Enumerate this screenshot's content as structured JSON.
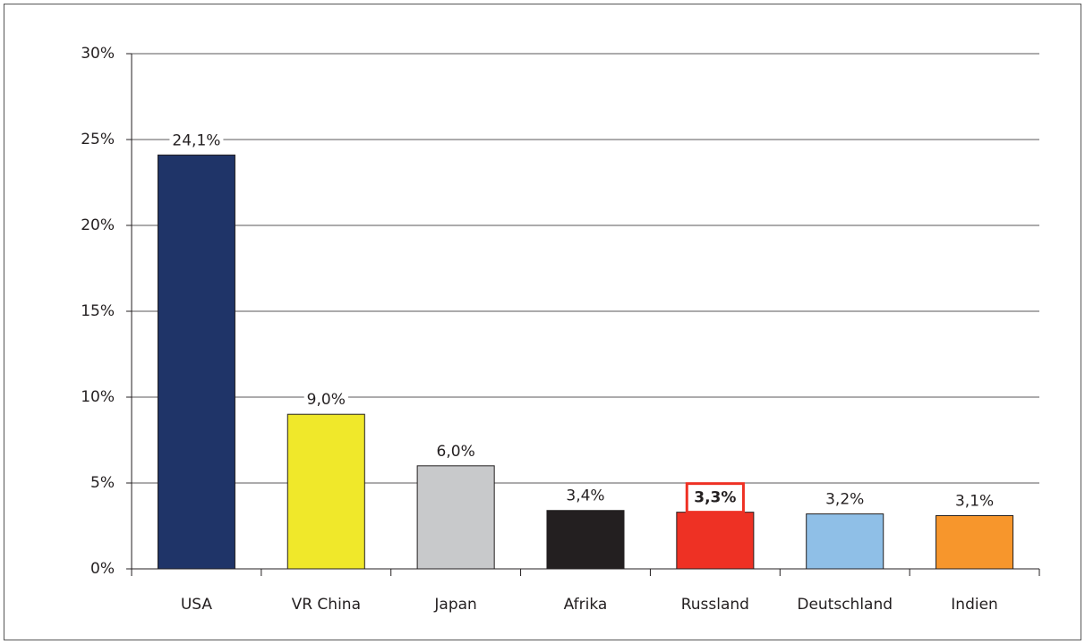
{
  "chart_data": {
    "type": "bar",
    "categories": [
      "USA",
      "VR China",
      "Japan",
      "Afrika",
      "Russland",
      "Deutschland",
      "Indien"
    ],
    "values": [
      24.1,
      9.0,
      6.0,
      3.4,
      3.3,
      3.2,
      3.1
    ],
    "value_labels": [
      "24,1%",
      "9,0%",
      "6,0%",
      "3,4%",
      "3,3%",
      "3,2%",
      "3,1%"
    ],
    "colors": [
      "#1f3468",
      "#f0e82a",
      "#c8c9cb",
      "#231f20",
      "#ee3124",
      "#8fbfe7",
      "#f7962c"
    ],
    "highlight": 4,
    "ylim": [
      0,
      30
    ],
    "yticks": [
      {
        "value": 0,
        "label": "0%"
      },
      {
        "value": 5,
        "label": "5%"
      },
      {
        "value": 10,
        "label": "10%"
      },
      {
        "value": 15,
        "label": "15%"
      },
      {
        "value": 20,
        "label": "20%"
      },
      {
        "value": 25,
        "label": "25%"
      },
      {
        "value": 30,
        "label": "30%"
      }
    ],
    "grid": true
  }
}
